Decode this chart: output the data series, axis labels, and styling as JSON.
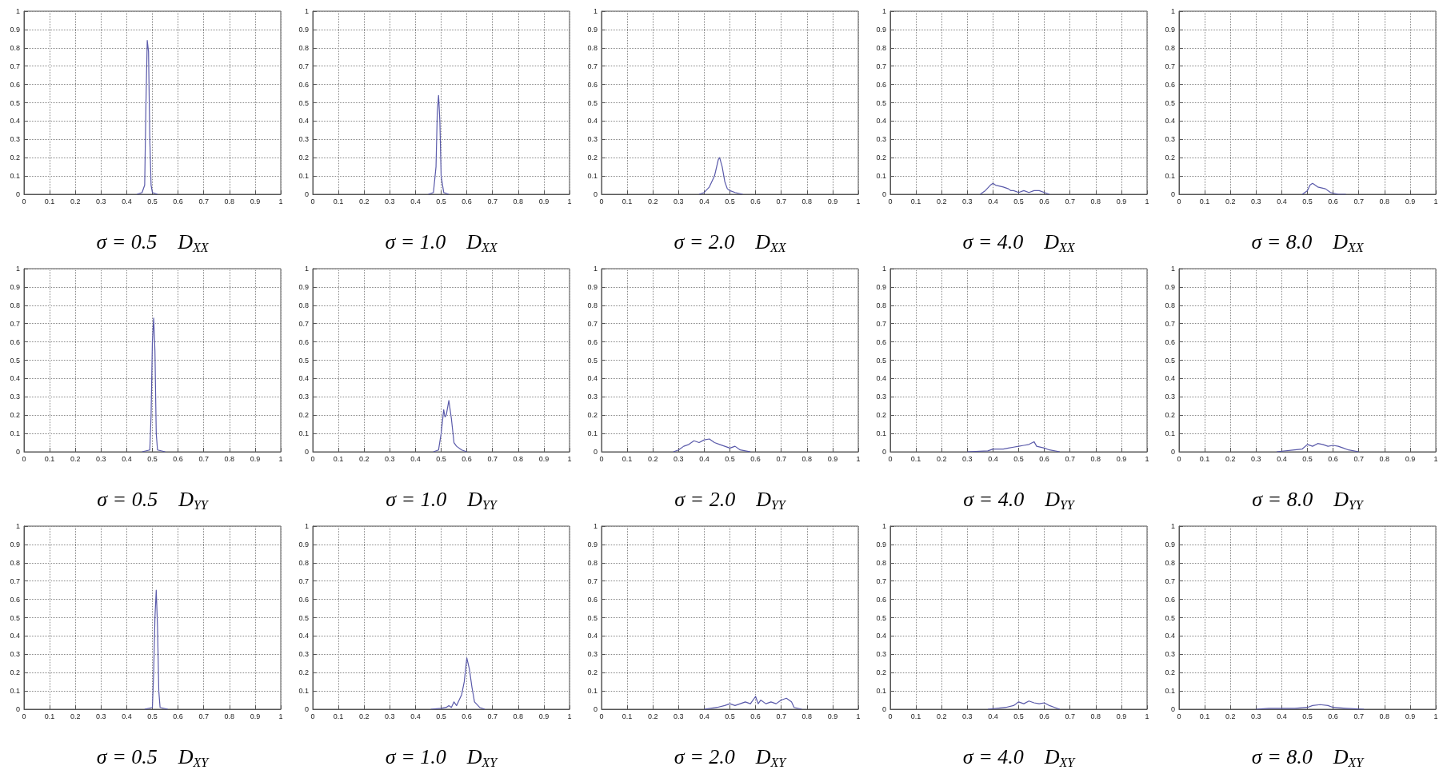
{
  "chart_data": [
    {
      "type": "line",
      "xlabel": "σ = 0.5    D$_{XX}$",
      "color": "#5a5aaa",
      "grid": true,
      "xlim": [
        0,
        1
      ],
      "ylim": [
        0,
        1
      ],
      "xticks": [
        0,
        0.1,
        0.2,
        0.3,
        0.4,
        0.5,
        0.6,
        0.7,
        0.8,
        0.9,
        1
      ],
      "yticks": [
        0,
        0.1,
        0.2,
        0.3,
        0.4,
        0.5,
        0.6,
        0.7,
        0.8,
        0.9,
        1
      ],
      "x": [
        0.44,
        0.46,
        0.47,
        0.475,
        0.48,
        0.485,
        0.49,
        0.495,
        0.5,
        0.52
      ],
      "values": [
        0,
        0.01,
        0.05,
        0.5,
        0.84,
        0.78,
        0.3,
        0.05,
        0.01,
        0
      ]
    },
    {
      "type": "line",
      "xlabel": "σ = 1.0    D$_{XX}$",
      "color": "#5a5aaa",
      "grid": true,
      "xlim": [
        0,
        1
      ],
      "ylim": [
        0,
        1
      ],
      "xticks": [
        0,
        0.1,
        0.2,
        0.3,
        0.4,
        0.5,
        0.6,
        0.7,
        0.8,
        0.9,
        1
      ],
      "yticks": [
        0,
        0.1,
        0.2,
        0.3,
        0.4,
        0.5,
        0.6,
        0.7,
        0.8,
        0.9,
        1
      ],
      "x": [
        0.45,
        0.47,
        0.48,
        0.485,
        0.49,
        0.495,
        0.5,
        0.51,
        0.53
      ],
      "values": [
        0,
        0.01,
        0.15,
        0.45,
        0.54,
        0.4,
        0.1,
        0.01,
        0
      ]
    },
    {
      "type": "line",
      "xlabel": "σ = 2.0    D$_{XX}$",
      "color": "#5a5aaa",
      "grid": true,
      "xlim": [
        0,
        1
      ],
      "ylim": [
        0,
        1
      ],
      "xticks": [
        0,
        0.1,
        0.2,
        0.3,
        0.4,
        0.5,
        0.6,
        0.7,
        0.8,
        0.9,
        1
      ],
      "yticks": [
        0,
        0.1,
        0.2,
        0.3,
        0.4,
        0.5,
        0.6,
        0.7,
        0.8,
        0.9,
        1
      ],
      "x": [
        0.38,
        0.4,
        0.42,
        0.44,
        0.455,
        0.46,
        0.47,
        0.48,
        0.49,
        0.5,
        0.52,
        0.55
      ],
      "values": [
        0,
        0.01,
        0.04,
        0.1,
        0.19,
        0.2,
        0.15,
        0.07,
        0.03,
        0.02,
        0.01,
        0
      ]
    },
    {
      "type": "line",
      "xlabel": "σ = 4.0    D$_{XX}$",
      "color": "#5a5aaa",
      "grid": true,
      "xlim": [
        0,
        1
      ],
      "ylim": [
        0,
        1
      ],
      "xticks": [
        0,
        0.1,
        0.2,
        0.3,
        0.4,
        0.5,
        0.6,
        0.7,
        0.8,
        0.9,
        1
      ],
      "yticks": [
        0,
        0.1,
        0.2,
        0.3,
        0.4,
        0.5,
        0.6,
        0.7,
        0.8,
        0.9,
        1
      ],
      "x": [
        0.35,
        0.37,
        0.39,
        0.4,
        0.41,
        0.44,
        0.46,
        0.47,
        0.48,
        0.5,
        0.52,
        0.54,
        0.56,
        0.58,
        0.6,
        0.62
      ],
      "values": [
        0,
        0.02,
        0.05,
        0.06,
        0.05,
        0.04,
        0.03,
        0.02,
        0.02,
        0.01,
        0.02,
        0.01,
        0.02,
        0.02,
        0.01,
        0
      ]
    },
    {
      "type": "line",
      "xlabel": "σ = 8.0    D$_{XX}$",
      "color": "#5a5aaa",
      "grid": true,
      "xlim": [
        0,
        1
      ],
      "ylim": [
        0,
        1
      ],
      "xticks": [
        0,
        0.1,
        0.2,
        0.3,
        0.4,
        0.5,
        0.6,
        0.7,
        0.8,
        0.9,
        1
      ],
      "yticks": [
        0,
        0.1,
        0.2,
        0.3,
        0.4,
        0.5,
        0.6,
        0.7,
        0.8,
        0.9,
        1
      ],
      "x": [
        0.48,
        0.5,
        0.51,
        0.52,
        0.54,
        0.57,
        0.59,
        0.62,
        0.65
      ],
      "values": [
        0,
        0.02,
        0.05,
        0.06,
        0.04,
        0.03,
        0.01,
        0,
        0
      ]
    },
    {
      "type": "line",
      "xlabel": "σ = 0.5    D$_{YY}$",
      "color": "#5a5aaa",
      "grid": true,
      "xlim": [
        0,
        1
      ],
      "ylim": [
        0,
        1
      ],
      "xticks": [
        0,
        0.1,
        0.2,
        0.3,
        0.4,
        0.5,
        0.6,
        0.7,
        0.8,
        0.9,
        1
      ],
      "yticks": [
        0,
        0.1,
        0.2,
        0.3,
        0.4,
        0.5,
        0.6,
        0.7,
        0.8,
        0.9,
        1
      ],
      "x": [
        0.46,
        0.49,
        0.495,
        0.5,
        0.505,
        0.51,
        0.515,
        0.52,
        0.55
      ],
      "values": [
        0,
        0.01,
        0.2,
        0.6,
        0.73,
        0.55,
        0.1,
        0.01,
        0
      ]
    },
    {
      "type": "line",
      "xlabel": "σ = 1.0    D$_{YY}$",
      "color": "#5a5aaa",
      "grid": true,
      "xlim": [
        0,
        1
      ],
      "ylim": [
        0,
        1
      ],
      "xticks": [
        0,
        0.1,
        0.2,
        0.3,
        0.4,
        0.5,
        0.6,
        0.7,
        0.8,
        0.9,
        1
      ],
      "yticks": [
        0,
        0.1,
        0.2,
        0.3,
        0.4,
        0.5,
        0.6,
        0.7,
        0.8,
        0.9,
        1
      ],
      "x": [
        0.47,
        0.49,
        0.5,
        0.51,
        0.515,
        0.52,
        0.53,
        0.54,
        0.55,
        0.56,
        0.58,
        0.6
      ],
      "values": [
        0,
        0.01,
        0.1,
        0.23,
        0.19,
        0.2,
        0.28,
        0.18,
        0.05,
        0.03,
        0.01,
        0
      ]
    },
    {
      "type": "line",
      "xlabel": "σ = 2.0    D$_{YY}$",
      "color": "#5a5aaa",
      "grid": true,
      "xlim": [
        0,
        1
      ],
      "ylim": [
        0,
        1
      ],
      "xticks": [
        0,
        0.1,
        0.2,
        0.3,
        0.4,
        0.5,
        0.6,
        0.7,
        0.8,
        0.9,
        1
      ],
      "yticks": [
        0,
        0.1,
        0.2,
        0.3,
        0.4,
        0.5,
        0.6,
        0.7,
        0.8,
        0.9,
        1
      ],
      "x": [
        0.28,
        0.3,
        0.32,
        0.34,
        0.36,
        0.38,
        0.4,
        0.42,
        0.44,
        0.46,
        0.48,
        0.5,
        0.52,
        0.54,
        0.56,
        0.58
      ],
      "values": [
        0,
        0.01,
        0.03,
        0.04,
        0.06,
        0.05,
        0.065,
        0.07,
        0.05,
        0.04,
        0.03,
        0.02,
        0.03,
        0.01,
        0.005,
        0
      ]
    },
    {
      "type": "line",
      "xlabel": "σ = 4.0    D$_{YY}$",
      "color": "#5a5aaa",
      "grid": true,
      "xlim": [
        0,
        1
      ],
      "ylim": [
        0,
        1
      ],
      "xticks": [
        0,
        0.1,
        0.2,
        0.3,
        0.4,
        0.5,
        0.6,
        0.7,
        0.8,
        0.9,
        1
      ],
      "yticks": [
        0,
        0.1,
        0.2,
        0.3,
        0.4,
        0.5,
        0.6,
        0.7,
        0.8,
        0.9,
        1
      ],
      "x": [
        0.3,
        0.38,
        0.4,
        0.44,
        0.46,
        0.48,
        0.5,
        0.52,
        0.54,
        0.56,
        0.57,
        0.6,
        0.62,
        0.66
      ],
      "values": [
        0,
        0.005,
        0.015,
        0.015,
        0.02,
        0.025,
        0.03,
        0.035,
        0.04,
        0.055,
        0.03,
        0.02,
        0.01,
        0
      ]
    },
    {
      "type": "line",
      "xlabel": "σ = 8.0    D$_{YY}$",
      "color": "#5a5aaa",
      "grid": true,
      "xlim": [
        0,
        1
      ],
      "ylim": [
        0,
        1
      ],
      "xticks": [
        0,
        0.1,
        0.2,
        0.3,
        0.4,
        0.5,
        0.6,
        0.7,
        0.8,
        0.9,
        1
      ],
      "yticks": [
        0,
        0.1,
        0.2,
        0.3,
        0.4,
        0.5,
        0.6,
        0.7,
        0.8,
        0.9,
        1
      ],
      "x": [
        0.38,
        0.45,
        0.48,
        0.5,
        0.52,
        0.54,
        0.56,
        0.58,
        0.6,
        0.62,
        0.64,
        0.66,
        0.7
      ],
      "values": [
        0,
        0.01,
        0.015,
        0.04,
        0.03,
        0.045,
        0.04,
        0.03,
        0.035,
        0.03,
        0.02,
        0.01,
        0
      ]
    },
    {
      "type": "line",
      "xlabel": "σ = 0.5    D$_{XY}$",
      "color": "#5a5aaa",
      "grid": true,
      "xlim": [
        0,
        1
      ],
      "ylim": [
        0,
        1
      ],
      "xticks": [
        0,
        0.1,
        0.2,
        0.3,
        0.4,
        0.5,
        0.6,
        0.7,
        0.8,
        0.9,
        1
      ],
      "yticks": [
        0,
        0.1,
        0.2,
        0.3,
        0.4,
        0.5,
        0.6,
        0.7,
        0.8,
        0.9,
        1
      ],
      "x": [
        0.47,
        0.5,
        0.505,
        0.51,
        0.515,
        0.52,
        0.525,
        0.53,
        0.56
      ],
      "values": [
        0,
        0.01,
        0.2,
        0.5,
        0.65,
        0.45,
        0.1,
        0.01,
        0
      ]
    },
    {
      "type": "line",
      "xlabel": "σ = 1.0    D$_{XY}$",
      "color": "#5a5aaa",
      "grid": true,
      "xlim": [
        0,
        1
      ],
      "ylim": [
        0,
        1
      ],
      "xticks": [
        0,
        0.1,
        0.2,
        0.3,
        0.4,
        0.5,
        0.6,
        0.7,
        0.8,
        0.9,
        1
      ],
      "yticks": [
        0,
        0.1,
        0.2,
        0.3,
        0.4,
        0.5,
        0.6,
        0.7,
        0.8,
        0.9,
        1
      ],
      "x": [
        0.46,
        0.5,
        0.52,
        0.53,
        0.54,
        0.55,
        0.56,
        0.58,
        0.59,
        0.6,
        0.61,
        0.62,
        0.63,
        0.65,
        0.67
      ],
      "values": [
        0,
        0.005,
        0.01,
        0.02,
        0.01,
        0.04,
        0.02,
        0.08,
        0.15,
        0.28,
        0.22,
        0.12,
        0.04,
        0.01,
        0
      ]
    },
    {
      "type": "line",
      "xlabel": "σ = 2.0    D$_{XY}$",
      "color": "#5a5aaa",
      "grid": true,
      "xlim": [
        0,
        1
      ],
      "ylim": [
        0,
        1
      ],
      "xticks": [
        0,
        0.1,
        0.2,
        0.3,
        0.4,
        0.5,
        0.6,
        0.7,
        0.8,
        0.9,
        1
      ],
      "yticks": [
        0,
        0.1,
        0.2,
        0.3,
        0.4,
        0.5,
        0.6,
        0.7,
        0.8,
        0.9,
        1
      ],
      "x": [
        0.4,
        0.45,
        0.48,
        0.5,
        0.52,
        0.54,
        0.56,
        0.58,
        0.6,
        0.61,
        0.62,
        0.64,
        0.66,
        0.68,
        0.7,
        0.72,
        0.74,
        0.75,
        0.78
      ],
      "values": [
        0,
        0.01,
        0.02,
        0.03,
        0.02,
        0.03,
        0.04,
        0.03,
        0.07,
        0.03,
        0.05,
        0.03,
        0.04,
        0.03,
        0.05,
        0.06,
        0.04,
        0.01,
        0
      ]
    },
    {
      "type": "line",
      "xlabel": "σ = 4.0    D$_{XY}$",
      "color": "#5a5aaa",
      "grid": true,
      "xlim": [
        0,
        1
      ],
      "ylim": [
        0,
        1
      ],
      "xticks": [
        0,
        0.1,
        0.2,
        0.3,
        0.4,
        0.5,
        0.6,
        0.7,
        0.8,
        0.9,
        1
      ],
      "yticks": [
        0,
        0.1,
        0.2,
        0.3,
        0.4,
        0.5,
        0.6,
        0.7,
        0.8,
        0.9,
        1
      ],
      "x": [
        0.38,
        0.45,
        0.48,
        0.5,
        0.52,
        0.54,
        0.56,
        0.58,
        0.6,
        0.62,
        0.64,
        0.66
      ],
      "values": [
        0,
        0.01,
        0.02,
        0.04,
        0.03,
        0.045,
        0.035,
        0.03,
        0.035,
        0.02,
        0.01,
        0
      ]
    },
    {
      "type": "line",
      "xlabel": "σ = 8.0    D$_{XY}$",
      "color": "#5a5aaa",
      "grid": true,
      "xlim": [
        0,
        1
      ],
      "ylim": [
        0,
        1
      ],
      "xticks": [
        0,
        0.1,
        0.2,
        0.3,
        0.4,
        0.5,
        0.6,
        0.7,
        0.8,
        0.9,
        1
      ],
      "yticks": [
        0,
        0.1,
        0.2,
        0.3,
        0.4,
        0.5,
        0.6,
        0.7,
        0.8,
        0.9,
        1
      ],
      "x": [
        0.3,
        0.35,
        0.4,
        0.45,
        0.5,
        0.52,
        0.55,
        0.58,
        0.6,
        0.65,
        0.72
      ],
      "values": [
        0,
        0.005,
        0.005,
        0.005,
        0.01,
        0.02,
        0.025,
        0.02,
        0.01,
        0.005,
        0
      ]
    }
  ]
}
